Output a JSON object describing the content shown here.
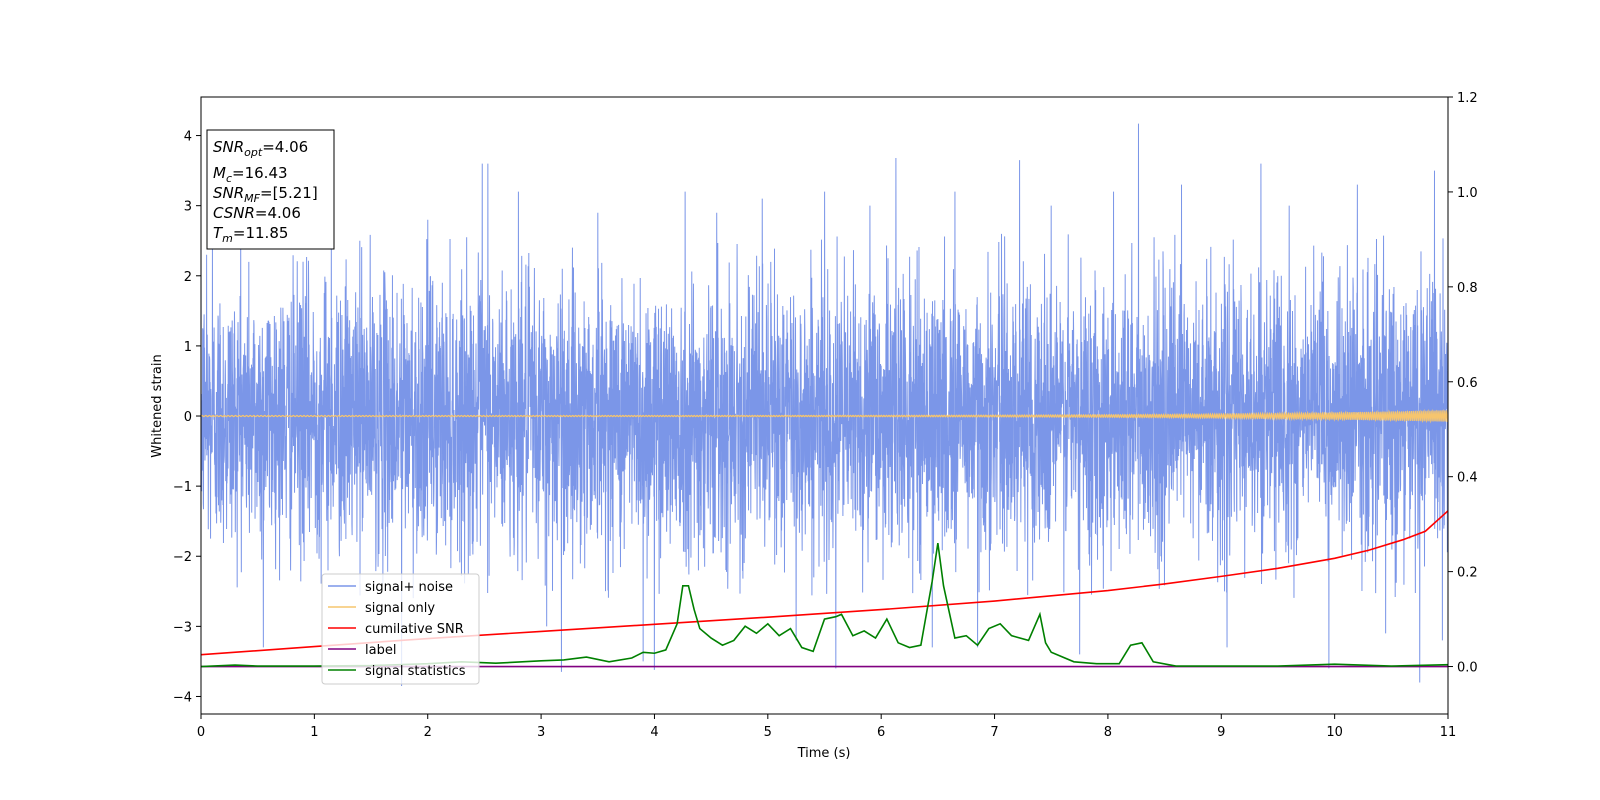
{
  "chart_data": {
    "type": "line",
    "title": "",
    "xlabel": "Time (s)",
    "ylabel": "Whitened strain",
    "y2label": "",
    "xlim": [
      0,
      11
    ],
    "ylim": [
      -4.25,
      4.55
    ],
    "y2lim": [
      -0.1,
      1.2
    ],
    "xticks": [
      0,
      1,
      2,
      3,
      4,
      5,
      6,
      7,
      8,
      9,
      10,
      11
    ],
    "yticks": [
      -4,
      -3,
      -2,
      -1,
      0,
      1,
      2,
      3,
      4
    ],
    "y2ticks": [
      0.0,
      0.2,
      0.4,
      0.6,
      0.8,
      1.0,
      1.2
    ],
    "xtick_labels": [
      "0",
      "1",
      "2",
      "3",
      "4",
      "5",
      "6",
      "7",
      "8",
      "9",
      "10",
      "11"
    ],
    "ytick_labels": [
      "−4",
      "−3",
      "−2",
      "−1",
      "0",
      "1",
      "2",
      "3",
      "4"
    ],
    "y2tick_labels": [
      "0.0",
      "0.2",
      "0.4",
      "0.6",
      "0.8",
      "1.0",
      "1.2"
    ],
    "grid": false,
    "legend_position": "lower-left",
    "annotation": {
      "lines": [
        {
          "base": "SNR",
          "sub": "opt",
          "rest": "=4.06"
        },
        {
          "base": "M",
          "sub": "c",
          "rest": "=16.43"
        },
        {
          "base": "SNR",
          "sub": "MF",
          "rest": "=[5.21]"
        },
        {
          "base": "CSNR",
          "sub": "",
          "rest": "=4.06"
        },
        {
          "base": "T",
          "sub": "m",
          "rest": "=11.85"
        }
      ]
    },
    "series": [
      {
        "name": "signal+ noise",
        "color": "#7b96e8",
        "axis": "left",
        "description_samples": "noisy whitened strain; envelope roughly -2.5..2.5 with spikes up to 4.17 near t=8.27 and down to -3.85 near t=1.77",
        "spikes": [
          [
            0.05,
            2.3
          ],
          [
            0.1,
            2.4
          ],
          [
            0.35,
            2.6
          ],
          [
            0.55,
            -3.3
          ],
          [
            0.9,
            2.2
          ],
          [
            1.15,
            2.5
          ],
          [
            1.4,
            2.5
          ],
          [
            1.77,
            -3.85
          ],
          [
            2.0,
            2.8
          ],
          [
            2.48,
            3.6
          ],
          [
            2.53,
            3.6
          ],
          [
            2.8,
            3.2
          ],
          [
            3.05,
            -3.0
          ],
          [
            3.18,
            -3.65
          ],
          [
            3.5,
            2.9
          ],
          [
            3.9,
            -3.5
          ],
          [
            4.0,
            -3.62
          ],
          [
            4.27,
            3.2
          ],
          [
            4.55,
            2.9
          ],
          [
            4.95,
            3.1
          ],
          [
            5.25,
            -3.2
          ],
          [
            5.5,
            3.2
          ],
          [
            5.6,
            -3.6
          ],
          [
            5.9,
            3.0
          ],
          [
            6.13,
            3.68
          ],
          [
            6.45,
            -3.3
          ],
          [
            6.65,
            3.2
          ],
          [
            6.85,
            -3.3
          ],
          [
            7.22,
            3.65
          ],
          [
            7.5,
            3.0
          ],
          [
            7.75,
            -3.4
          ],
          [
            8.05,
            3.2
          ],
          [
            8.27,
            4.17
          ],
          [
            8.65,
            3.3
          ],
          [
            9.05,
            -3.3
          ],
          [
            9.35,
            3.6
          ],
          [
            9.6,
            3.0
          ],
          [
            9.95,
            -3.6
          ],
          [
            10.2,
            3.3
          ],
          [
            10.45,
            -3.1
          ],
          [
            10.75,
            -3.8
          ],
          [
            10.88,
            3.5
          ],
          [
            10.95,
            -3.2
          ]
        ]
      },
      {
        "name": "signal only",
        "color": "#f6c56e",
        "axis": "left",
        "description_samples": "chirp near zero, amplitude growing to about 0.08 near t=11"
      },
      {
        "name": "cumilative SNR",
        "color": "#ff0000",
        "axis": "right",
        "x": [
          0,
          1,
          2,
          3,
          4,
          5,
          6,
          7,
          8,
          8.5,
          9,
          9.5,
          10,
          10.3,
          10.6,
          10.8,
          11
        ],
        "y": [
          0.025,
          0.042,
          0.059,
          0.074,
          0.089,
          0.104,
          0.12,
          0.138,
          0.16,
          0.174,
          0.19,
          0.207,
          0.228,
          0.245,
          0.267,
          0.285,
          0.328
        ]
      },
      {
        "name": "label",
        "color": "#800080",
        "axis": "right",
        "x": [
          0,
          11
        ],
        "y": [
          0.0,
          0.0
        ]
      },
      {
        "name": "signal statistics",
        "color": "#008000",
        "axis": "right",
        "x": [
          0,
          0.3,
          0.5,
          1.0,
          1.5,
          2.0,
          2.3,
          2.6,
          3.0,
          3.2,
          3.4,
          3.6,
          3.8,
          3.9,
          4.0,
          4.1,
          4.2,
          4.25,
          4.3,
          4.35,
          4.4,
          4.5,
          4.6,
          4.7,
          4.8,
          4.9,
          5.0,
          5.1,
          5.2,
          5.3,
          5.4,
          5.5,
          5.6,
          5.65,
          5.75,
          5.85,
          5.95,
          6.05,
          6.15,
          6.25,
          6.35,
          6.45,
          6.5,
          6.55,
          6.65,
          6.75,
          6.85,
          6.95,
          7.05,
          7.15,
          7.3,
          7.4,
          7.45,
          7.5,
          7.7,
          7.9,
          8.1,
          8.2,
          8.3,
          8.4,
          8.6,
          9.0,
          9.5,
          10.0,
          10.5,
          11.0
        ],
        "y": [
          0.0,
          0.003,
          0.001,
          0.001,
          0.002,
          0.006,
          0.01,
          0.007,
          0.012,
          0.014,
          0.02,
          0.01,
          0.018,
          0.03,
          0.028,
          0.035,
          0.09,
          0.17,
          0.17,
          0.12,
          0.08,
          0.06,
          0.045,
          0.055,
          0.085,
          0.07,
          0.09,
          0.065,
          0.08,
          0.04,
          0.032,
          0.1,
          0.105,
          0.11,
          0.065,
          0.075,
          0.06,
          0.1,
          0.05,
          0.04,
          0.045,
          0.18,
          0.26,
          0.17,
          0.06,
          0.065,
          0.045,
          0.08,
          0.09,
          0.065,
          0.055,
          0.11,
          0.05,
          0.03,
          0.01,
          0.006,
          0.006,
          0.045,
          0.05,
          0.01,
          0.001,
          0.001,
          0.001,
          0.005,
          0.001,
          0.004
        ]
      }
    ]
  }
}
